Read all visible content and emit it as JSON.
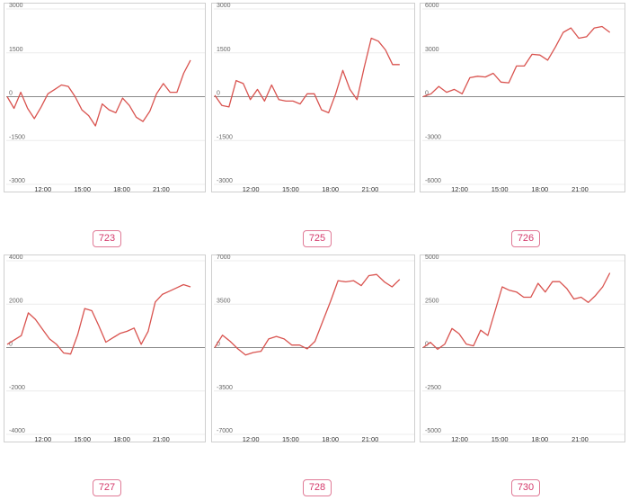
{
  "colors": {
    "line": "#d9534f",
    "badge_border": "#e07a96",
    "badge_text": "#d4386a",
    "zero_line": "#8a8a8a"
  },
  "chart_data": [
    {
      "type": "line",
      "id": "723",
      "x_ticks": [
        "12:00",
        "15:00",
        "18:00",
        "21:00"
      ],
      "y_ticks": [
        3000,
        1500,
        0,
        -1500,
        -3000
      ],
      "ylim": [
        -3000,
        3000
      ],
      "grid": true,
      "series": [
        {
          "values": [
            0,
            -400,
            150,
            -400,
            -750,
            -350,
            100,
            250,
            400,
            350,
            0,
            -450,
            -650,
            -1000,
            -250,
            -450,
            -550,
            -50,
            -300,
            -700,
            -850,
            -500,
            100,
            450,
            150,
            150,
            800,
            1250
          ]
        }
      ]
    },
    {
      "type": "line",
      "id": "725",
      "x_ticks": [
        "12:00",
        "15:00",
        "18:00",
        "21:00"
      ],
      "y_ticks": [
        3000,
        1500,
        0,
        -1500,
        -3000
      ],
      "ylim": [
        -3000,
        3000
      ],
      "grid": true,
      "series": [
        {
          "values": [
            50,
            -300,
            -350,
            550,
            450,
            -100,
            250,
            -150,
            400,
            -100,
            -150,
            -150,
            -250,
            100,
            100,
            -450,
            -550,
            100,
            900,
            250,
            -100,
            1000,
            2000,
            1900,
            1600,
            1100,
            1100
          ]
        }
      ]
    },
    {
      "type": "line",
      "id": "726",
      "x_ticks": [
        "12:00",
        "15:00",
        "18:00",
        "21:00"
      ],
      "y_ticks": [
        6000,
        3000,
        0,
        -3000,
        -6000
      ],
      "ylim": [
        -6000,
        6000
      ],
      "grid": true,
      "series": [
        {
          "values": [
            0,
            200,
            700,
            300,
            500,
            200,
            1300,
            1400,
            1350,
            1600,
            1000,
            950,
            2100,
            2100,
            2900,
            2850,
            2500,
            3400,
            4400,
            4700,
            4000,
            4100,
            4700,
            4800,
            4400
          ]
        }
      ]
    },
    {
      "type": "line",
      "id": "727",
      "x_ticks": [
        "12:00",
        "15:00",
        "18:00",
        "21:00"
      ],
      "y_ticks": [
        4000,
        2000,
        0,
        -2000,
        -4000
      ],
      "ylim": [
        -4000,
        4000
      ],
      "grid": true,
      "series": [
        {
          "values": [
            150,
            350,
            550,
            1600,
            1300,
            850,
            400,
            150,
            -250,
            -300,
            600,
            1800,
            1700,
            1000,
            250,
            450,
            650,
            750,
            900,
            150,
            750,
            2100,
            2450,
            2600,
            2750,
            2900,
            2800
          ]
        }
      ]
    },
    {
      "type": "line",
      "id": "728",
      "x_ticks": [
        "12:00",
        "15:00",
        "18:00",
        "21:00"
      ],
      "y_ticks": [
        7000,
        3500,
        0,
        -3500,
        -7000
      ],
      "ylim": [
        -7000,
        7000
      ],
      "grid": true,
      "series": [
        {
          "values": [
            0,
            1000,
            500,
            -100,
            -600,
            -400,
            -300,
            700,
            900,
            700,
            200,
            200,
            -100,
            500,
            2100,
            3700,
            5400,
            5300,
            5400,
            5000,
            5800,
            5900,
            5300,
            4900,
            5500
          ]
        }
      ]
    },
    {
      "type": "line",
      "id": "730",
      "x_ticks": [
        "12:00",
        "15:00",
        "18:00",
        "21:00"
      ],
      "y_ticks": [
        5000,
        2500,
        0,
        -2500,
        -5000
      ],
      "ylim": [
        -5000,
        5000
      ],
      "grid": true,
      "series": [
        {
          "values": [
            0,
            300,
            -100,
            200,
            1100,
            800,
            200,
            100,
            1000,
            700,
            2100,
            3500,
            3300,
            3200,
            2900,
            2900,
            3700,
            3200,
            3800,
            3800,
            3400,
            2800,
            2900,
            2600,
            3000,
            3500,
            4300
          ]
        }
      ]
    }
  ]
}
